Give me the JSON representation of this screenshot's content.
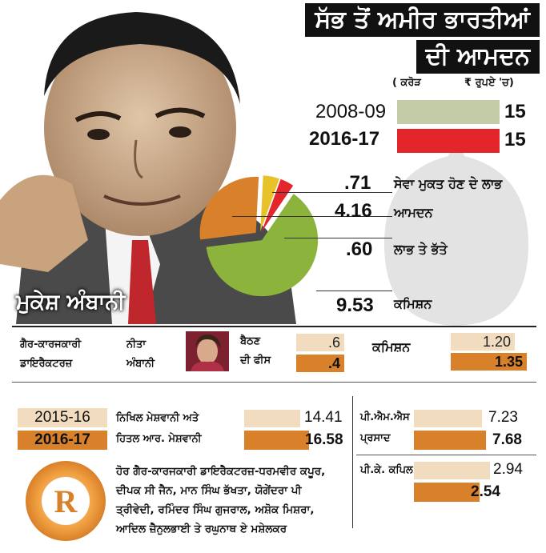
{
  "title": {
    "line1": "ਸੱਭ ਤੋਂ ਅਮੀਰ ਭਾਰਤੀਆਂ",
    "line2": "ਦੀ ਆਮਦਨ"
  },
  "units": {
    "left": "( ਕਰੋੜ",
    "right": "₹ ਰੁਪਏ 'ਚ)"
  },
  "person_name": "ਮੁਕੇਸ਼ ਅੰਬਾਨੀ",
  "colors": {
    "light_green": "#c3cca6",
    "red": "#e2262c",
    "orange": "#d9802a",
    "peach": "#f2dcc0",
    "yellow": "#e8c22a",
    "green": "#8cb43c",
    "bubble": "#e3e3e3"
  },
  "chart_data": [
    {
      "type": "bar",
      "categories": [
        "2008-09",
        "2016-17"
      ],
      "values": [
        15,
        15
      ],
      "value_labels": [
        "15",
        "15"
      ]
    },
    {
      "type": "pie",
      "labels": [
        "ਸੇਵਾ ਮੁਕਤ ਹੋਣ ਦੇ ਲਾਭ",
        "ਆਮਦਨ",
        "ਲਾਭ ਤੇ ਭੱਤੇ",
        "ਕਮਿਸ਼ਨ"
      ],
      "values": [
        0.71,
        4.16,
        0.6,
        9.53
      ],
      "value_labels": [
        ".71",
        "4.16",
        ".60",
        "9.53"
      ]
    },
    {
      "type": "bar",
      "name": "ਨੀਤਾ ਅੰਬਾਨੀ",
      "categories": [
        "ਬੈਠਣ ਦੀ ਫੀਸ",
        "ਕਮਿਸ਼ਨ"
      ],
      "series": [
        {
          "values": [
            0.6,
            1.2
          ],
          "labels": [
            ".6",
            "1.20"
          ]
        },
        {
          "values": [
            0.4,
            1.35
          ],
          "labels": [
            ".4",
            "1.35"
          ]
        }
      ]
    },
    {
      "type": "bar",
      "legend": [
        "2015-16",
        "2016-17"
      ],
      "categories": [
        "ਨਿਖਿਲ ਮੇਸ਼ਵਾਨੀ ਅਤੇ ਹਿਤਲ ਆਰ. ਮੇਸ਼ਵਾਨੀ",
        "ਪੀ.ਐਮ.ਐਸ ਪ੍ਰਸਾਦ",
        "ਪੀ.ਕੇ. ਕਪਿਲ"
      ],
      "series": [
        {
          "name": "2015-16",
          "values": [
            14.41,
            7.23,
            2.94
          ],
          "labels": [
            "14.41",
            "7.23",
            "2.94"
          ]
        },
        {
          "name": "2016-17",
          "values": [
            16.58,
            7.68,
            2.54
          ],
          "labels": [
            "16.58",
            "7.68",
            "2.54"
          ]
        }
      ]
    }
  ],
  "directors": {
    "heading_line1": "ਗੈਰ-ਕਾਰਜਕਾਰੀ",
    "heading_line2": "ਡਾਇਰੈਕਟਰਜ਼",
    "nita_line1": "ਨੀਤਾ",
    "nita_line2": "ਅੰਬਾਨੀ",
    "fee_line1": "ਬੈਠਣ",
    "fee_line2": "ਦੀ ਫੀਸ",
    "commission": "ਕਮਿਸ਼ਨ"
  },
  "meshwani": {
    "line1": "ਨਿਖਿਲ ਮੇਸ਼ਵਾਨੀ ਅਤੇ",
    "line2": "ਹਿਤਲ ਆਰ. ਮੇਸ਼ਵਾਨੀ"
  },
  "prasad": {
    "line1": "ਪੀ.ਐਮ.ਐਸ",
    "line2": "ਪ੍ਰਸਾਦ"
  },
  "kapil": "ਪੀ.ਕੇ. ਕਪਿਲ",
  "other_directors": [
    "ਹੋਰ ਗੈਰ-ਕਾਰਜਕਾਰੀ ਡਾਇਰੈਕਟਰਜ਼-ਧਰਮਵੀਰ ਕਪੂਰ,",
    "ਦੀਪਕ ਸੀ ਜੈਨ, ਮਾਨ ਸਿੰਘ ਭੱਖਤਾ, ਯੋਗੇਂਦਰਾ ਪੀ",
    "ਤ੍ਰੀਵੇਦੀ, ਰਮਿੰਦਰ ਸਿੰਘ ਗੁਜਰਾਲ, ਅਸ਼ੋਕ ਮਿਸ਼ਰਾ,",
    "ਆਦਿਲ ਜ਼ੈਨੁਲਭਾਈ ਤੇ ਰਘੁਨਾਥ ਏ ਮਸ਼ੇਲਕਰ"
  ],
  "logo_letter": "R"
}
